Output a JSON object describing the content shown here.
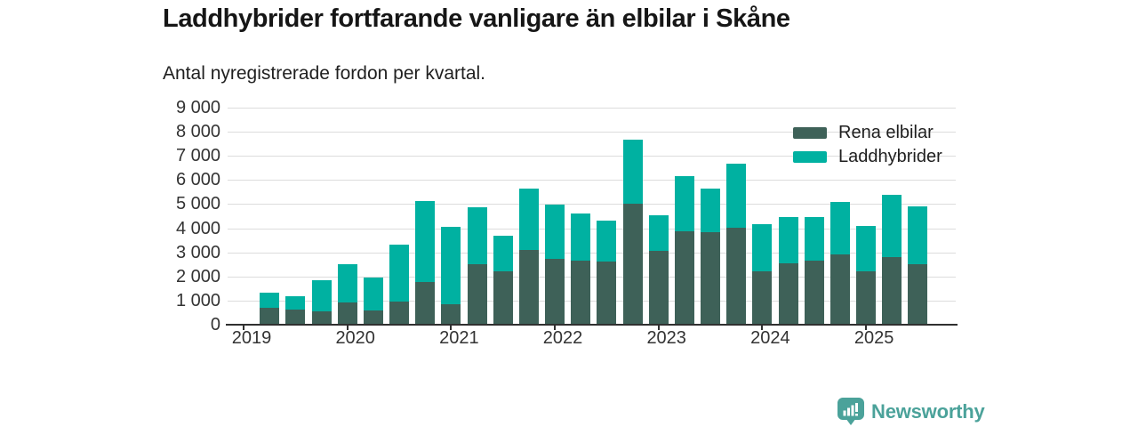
{
  "header": {
    "title": "Laddhybrider fortfarande vanligare än elbilar i Skåne",
    "subtitle": "Antal nyregistrerade fordon per kvartal."
  },
  "chart_data": {
    "type": "bar",
    "stacked": true,
    "title": "Laddhybrider fortfarande vanligare än elbilar i Skåne",
    "subtitle": "Antal nyregistrerade fordon per kvartal.",
    "xlabel": "",
    "ylabel": "Antal nyregistrerade fordon",
    "ylim": [
      0,
      9000
    ],
    "grid": true,
    "legend_position": "top-right",
    "x": [
      "2019 Q2",
      "2019 Q3",
      "2019 Q4",
      "2020 Q1",
      "2020 Q2",
      "2020 Q3",
      "2020 Q4",
      "2021 Q1",
      "2021 Q2",
      "2021 Q3",
      "2021 Q4",
      "2022 Q1",
      "2022 Q2",
      "2022 Q3",
      "2022 Q4",
      "2023 Q1",
      "2023 Q2",
      "2023 Q3",
      "2023 Q4",
      "2024 Q1",
      "2024 Q2",
      "2024 Q3",
      "2024 Q4",
      "2025 Q1",
      "2025 Q2",
      "2025 Q3"
    ],
    "x_axis_tick_labels": [
      "2019",
      "2020",
      "2021",
      "2022",
      "2023",
      "2024",
      "2025"
    ],
    "y_axis_tick_labels": [
      "0",
      "1 000",
      "2 000",
      "3 000",
      "4 000",
      "5 000",
      "6 000",
      "7 000",
      "8 000",
      "9 000"
    ],
    "series": [
      {
        "name": "Rena elbilar",
        "color": "#3E6158",
        "values": [
          650,
          590,
          520,
          870,
          540,
          930,
          1750,
          800,
          2460,
          2170,
          3050,
          2700,
          2620,
          2570,
          4970,
          3010,
          3850,
          3800,
          3970,
          2180,
          2500,
          2630,
          2870,
          2160,
          2780,
          2460
        ]
      },
      {
        "name": "Laddhybrider",
        "color": "#00B1A1",
        "values": [
          660,
          560,
          1280,
          1610,
          1390,
          2360,
          3330,
          3240,
          2390,
          1500,
          2570,
          2260,
          1970,
          1700,
          2660,
          1500,
          2260,
          1800,
          2660,
          1970,
          1920,
          1800,
          2170,
          1880,
          2570,
          2420
        ]
      }
    ]
  },
  "colors": {
    "grid": "#dcdcdc",
    "axis": "#303030",
    "tick_label": "#333333"
  },
  "footer": {
    "brand": "Newsworthy",
    "brand_color": "#4BA29A"
  }
}
